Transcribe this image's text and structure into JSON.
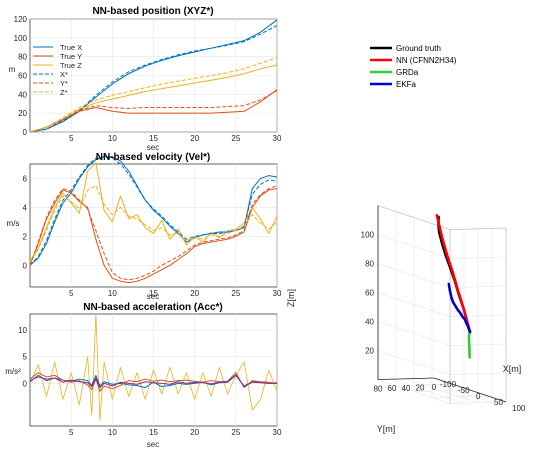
{
  "colors": {
    "blue": "#0072BD",
    "orange": "#D95319",
    "yellow": "#EDB120",
    "purple": "#7E2F8E",
    "ground_truth": "#000000",
    "nn": "#FF0000",
    "grda": "#33CC33",
    "ekfa": "#0000CC",
    "grid": "#e5e5e5",
    "axis": "#262626"
  },
  "chart_data": [
    {
      "type": "line",
      "title": "NN-based position (XYZ*)",
      "xlabel": "sec",
      "ylabel": "m",
      "xlim": [
        0,
        30
      ],
      "ylim": [
        0,
        120
      ],
      "xticks": [
        5,
        10,
        15,
        20,
        25,
        30
      ],
      "yticks": [
        0,
        20,
        40,
        60,
        80,
        100,
        120
      ],
      "grid": true,
      "legend_position": "top-left",
      "x": [
        0,
        2,
        4,
        6,
        8,
        10,
        12,
        14,
        16,
        18,
        20,
        22,
        24,
        26,
        28,
        30
      ],
      "series": [
        {
          "name": "True X",
          "style": "solid",
          "color_key": "blue",
          "values": [
            0,
            3,
            11,
            22,
            37,
            51,
            62,
            70,
            76,
            81,
            85,
            89,
            93,
            97,
            106,
            119
          ]
        },
        {
          "name": "True Y",
          "style": "solid",
          "color_key": "orange",
          "values": [
            0,
            5,
            13,
            22,
            26,
            22,
            20,
            20,
            20,
            20,
            20,
            20,
            21,
            22,
            32,
            45
          ]
        },
        {
          "name": "True Z",
          "style": "solid",
          "color_key": "yellow",
          "values": [
            0,
            5,
            14,
            24,
            31,
            35,
            39,
            43,
            46,
            49,
            52,
            55,
            58,
            62,
            67,
            71
          ]
        },
        {
          "name": "X*",
          "style": "dashed",
          "color_key": "blue",
          "values": [
            0,
            3,
            12,
            23,
            39,
            53,
            64,
            71,
            77,
            82,
            86,
            89,
            92,
            96,
            104,
            113
          ]
        },
        {
          "name": "Y*",
          "style": "dashed",
          "color_key": "orange",
          "values": [
            0,
            5,
            13,
            23,
            28,
            26,
            25,
            26,
            26,
            26,
            26,
            26,
            27,
            28,
            34,
            44
          ]
        },
        {
          "name": "Z*",
          "style": "dashed",
          "color_key": "yellow",
          "values": [
            0,
            5,
            15,
            26,
            34,
            39,
            43,
            47,
            51,
            54,
            57,
            60,
            63,
            67,
            73,
            79
          ]
        }
      ]
    },
    {
      "type": "line",
      "title": "NN-based velocity (Vel*)",
      "xlabel": "sec",
      "ylabel": "m/s",
      "xlim": [
        0,
        30
      ],
      "ylim": [
        -1.5,
        7
      ],
      "xticks": [
        5,
        10,
        15,
        20,
        25,
        30
      ],
      "yticks": [
        0,
        2,
        4,
        6
      ],
      "grid": true,
      "x": [
        0,
        1,
        2,
        3,
        4,
        5,
        6,
        7,
        8,
        9,
        10,
        11,
        12,
        13,
        14,
        15,
        16,
        17,
        18,
        19,
        20,
        21,
        22,
        23,
        24,
        25,
        26,
        27,
        28,
        29,
        30
      ],
      "series": [
        {
          "style": "solid",
          "color_key": "blue",
          "values": [
            0,
            0.5,
            1.5,
            3,
            4.3,
            5,
            6,
            6.8,
            7.3,
            7.5,
            7.5,
            7.2,
            6.5,
            5.5,
            4.5,
            3.8,
            3.3,
            2.7,
            2.2,
            1.6,
            1.9,
            2.1,
            2.2,
            2.3,
            2.3,
            2.4,
            2.6,
            5.3,
            6,
            6.2,
            6.1
          ]
        },
        {
          "style": "solid",
          "color_key": "orange",
          "values": [
            0,
            1.5,
            3.2,
            4.3,
            5.2,
            5,
            4.4,
            4,
            1.8,
            0,
            -0.9,
            -1.1,
            -1.2,
            -1.1,
            -0.9,
            -0.6,
            -0.3,
            0,
            0.4,
            0.8,
            1.3,
            1.5,
            1.6,
            1.7,
            1.8,
            2,
            2.3,
            4,
            4.8,
            5.2,
            5.3
          ]
        },
        {
          "style": "solid",
          "color_key": "yellow",
          "values": [
            0.3,
            1.2,
            2.6,
            4,
            5,
            4.3,
            3.6,
            6.5,
            7.1,
            3.8,
            3,
            4.8,
            3.2,
            3.5,
            2.6,
            2.2,
            3.1,
            1.8,
            2.5,
            1.4,
            2,
            1.6,
            2.3,
            1.9,
            2.4,
            2.5,
            2.9,
            4,
            3.2,
            2.2,
            3.4
          ]
        },
        {
          "style": "dashed",
          "color_key": "blue",
          "values": [
            0,
            0.6,
            1.7,
            3.2,
            4.5,
            5.2,
            6.1,
            6.9,
            7.4,
            7.5,
            7.4,
            7,
            6.3,
            5.4,
            4.5,
            3.9,
            3.4,
            2.8,
            2.3,
            1.8,
            2,
            2.1,
            2.2,
            2.2,
            2.3,
            2.4,
            2.7,
            4.9,
            5.6,
            5.9,
            5.8
          ]
        },
        {
          "style": "dashed",
          "color_key": "orange",
          "values": [
            0,
            1.6,
            3.3,
            4.5,
            5.3,
            5.1,
            4.5,
            3.9,
            2.4,
            0.8,
            -0.5,
            -0.9,
            -1,
            -0.9,
            -0.7,
            -0.4,
            0,
            0.3,
            0.6,
            1,
            1.4,
            1.6,
            1.7,
            1.8,
            1.9,
            2.1,
            2.4,
            4.2,
            4.9,
            5.3,
            5.5
          ]
        },
        {
          "style": "dashed",
          "color_key": "yellow",
          "values": [
            0.2,
            1.1,
            2.4,
            3.8,
            4.8,
            4.4,
            3.9,
            5.2,
            5.5,
            4.2,
            3.5,
            4,
            3.4,
            3.2,
            2.8,
            2.4,
            2.6,
            2.1,
            2.2,
            1.7,
            2,
            1.8,
            2.1,
            2,
            2.2,
            2.4,
            2.7,
            3.5,
            2.9,
            2.5,
            3
          ]
        }
      ]
    },
    {
      "type": "line",
      "title": "NN-based acceleration (Acc*)",
      "xlabel": "sec",
      "ylabel": "m/s²",
      "xlim": [
        0,
        30
      ],
      "ylim": [
        -8,
        13
      ],
      "xticks": [
        5,
        10,
        15,
        20,
        25,
        30
      ],
      "yticks": [
        0,
        5,
        10
      ],
      "grid": true,
      "x": [
        0,
        1,
        2,
        3,
        4,
        5,
        6,
        7,
        7.5,
        8,
        8.5,
        9,
        10,
        11,
        12,
        13,
        14,
        15,
        16,
        17,
        18,
        19,
        20,
        21,
        22,
        23,
        24,
        25,
        26,
        27,
        28,
        29,
        30
      ],
      "series": [
        {
          "style": "solid",
          "color_key": "yellow",
          "values": [
            0,
            3.5,
            -2.5,
            4,
            -3,
            2,
            -4,
            5,
            -6,
            13,
            -7,
            4,
            -3,
            3,
            -2.5,
            2,
            -3,
            2.5,
            -2,
            3,
            -2,
            2,
            -3,
            2,
            -2.5,
            3,
            -2,
            1.5,
            4,
            -5,
            -3,
            2.5,
            -1.5
          ]
        },
        {
          "style": "solid",
          "color_key": "blue",
          "values": [
            0.5,
            1.2,
            0.8,
            1,
            0.6,
            0.4,
            0.8,
            0.5,
            -0.4,
            1.5,
            -0.5,
            0.3,
            -0.2,
            0,
            -0.3,
            -0.4,
            -0.8,
            0.2,
            -0.6,
            -0.4,
            0,
            -0.2,
            0,
            0.2,
            -0.3,
            0.1,
            0.2,
            1.5,
            -0.5,
            0.3,
            0.2,
            0,
            0.1
          ]
        },
        {
          "style": "solid",
          "color_key": "orange",
          "values": [
            0.8,
            2,
            1.2,
            1.5,
            0.6,
            0.2,
            0.5,
            -0.3,
            -1.2,
            0.8,
            -1.5,
            -0.5,
            -1,
            -0.4,
            0.5,
            0.3,
            0.8,
            0.4,
            0.6,
            0.3,
            0.5,
            0.6,
            0.4,
            0.2,
            0.5,
            0.3,
            0.4,
            2,
            -0.8,
            0.5,
            0.3,
            0.2,
            0
          ]
        },
        {
          "style": "solid",
          "color_key": "purple",
          "values": [
            0.3,
            1.5,
            0.5,
            1,
            0.2,
            0.6,
            0.3,
            0.1,
            -0.6,
            1,
            -0.8,
            0,
            -0.5,
            0.2,
            0,
            -0.2,
            0.3,
            0.1,
            0,
            -0.2,
            0.3,
            0,
            0.2,
            0.1,
            -0.1,
            0.2,
            0.3,
            1.6,
            -0.6,
            0.2,
            0.1,
            0,
            0
          ]
        }
      ]
    },
    {
      "type": "line3d",
      "xlabel": "X[m]",
      "ylabel": "Y[m]",
      "zlabel": "Z[m]",
      "xlim": [
        -100,
        100
      ],
      "ylim": [
        0,
        80
      ],
      "zlim": [
        0,
        120
      ],
      "xticks": [
        -100,
        -50,
        0,
        50,
        100
      ],
      "yticks": [
        0,
        20,
        40,
        60,
        80
      ],
      "zticks": [
        20,
        40,
        60,
        80,
        100
      ],
      "grid": true,
      "legend_position": "top-left",
      "series": [
        {
          "name": "Ground truth",
          "color_key": "ground_truth",
          "points": [
            [
              0,
              0,
              0
            ],
            [
              -5,
              8,
              10
            ],
            [
              -12,
              15,
              20
            ],
            [
              -25,
              25,
              32
            ],
            [
              -38,
              33,
              44
            ],
            [
              -55,
              42,
              56
            ],
            [
              -72,
              50,
              67
            ],
            [
              -88,
              55,
              77
            ],
            [
              -100,
              58,
              85
            ],
            [
              -108,
              57,
              92
            ],
            [
              -112,
              55,
              98
            ]
          ]
        },
        {
          "name": "NN (CFNN2H34)",
          "color_key": "nn",
          "points": [
            [
              0,
              0,
              0
            ],
            [
              -5,
              10,
              12
            ],
            [
              -10,
              20,
              24
            ],
            [
              -20,
              32,
              38
            ],
            [
              -32,
              42,
              52
            ],
            [
              -50,
              52,
              66
            ],
            [
              -68,
              60,
              80
            ],
            [
              -85,
              64,
              92
            ],
            [
              -100,
              65,
              100
            ]
          ]
        },
        {
          "name": "GRDa",
          "color_key": "grda",
          "points": [
            [
              0,
              0,
              0
            ],
            [
              0,
              2,
              -1
            ],
            [
              2,
              4,
              -3
            ],
            [
              4,
              5,
              -6
            ],
            [
              6,
              5,
              -10
            ],
            [
              8,
              5,
              -15
            ],
            [
              10,
              5,
              -22
            ]
          ]
        },
        {
          "name": "EKFa",
          "color_key": "ekfa",
          "points": [
            [
              0,
              0,
              0
            ],
            [
              3,
              5,
              3
            ],
            [
              6,
              10,
              6
            ],
            [
              10,
              15,
              8
            ],
            [
              14,
              22,
              12
            ],
            [
              18,
              30,
              14
            ],
            [
              23,
              40,
              18
            ],
            [
              28,
              50,
              21
            ],
            [
              33,
              60,
              25
            ],
            [
              37,
              68,
              28
            ],
            [
              42,
              75,
              32
            ],
            [
              47,
              82,
              38
            ],
            [
              52,
              88,
              45
            ]
          ]
        }
      ]
    }
  ]
}
